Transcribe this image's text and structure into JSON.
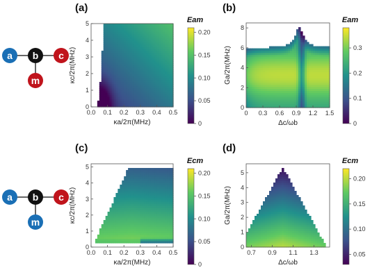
{
  "colors": {
    "node_a": "#1a6fb5",
    "node_b": "#111111",
    "node_c": "#c0141c",
    "node_m_top": "#c0141c",
    "node_m_bottom": "#1a6fb5",
    "colormap": [
      "#440154",
      "#3b528b",
      "#21918c",
      "#5ec962",
      "#fde725"
    ]
  },
  "diagrams": [
    {
      "nodes": [
        "a",
        "b",
        "c",
        "m"
      ],
      "icons": [
        "node-a",
        "node-b",
        "node-c",
        "node-m"
      ]
    },
    {
      "nodes": [
        "a",
        "b",
        "c",
        "m"
      ],
      "icons": [
        "node-a",
        "node-b",
        "node-c",
        "node-m"
      ]
    }
  ],
  "chart_data": [
    {
      "panel": "(a)",
      "type": "heatmap",
      "xlabel": "κa/2π(MHz)",
      "ylabel": "κc/2π(MHz)",
      "xlim": [
        0,
        0.5
      ],
      "ylim": [
        0,
        5
      ],
      "xticks": [
        "0.0",
        "0.1",
        "0.2",
        "0.3",
        "0.4",
        "0.5"
      ],
      "yticks": [
        "0",
        "1",
        "2",
        "3",
        "4",
        "5"
      ],
      "colorbar_title": "Eam",
      "colorbar_ticks": [
        "0",
        "0.05",
        "0.10",
        "0.15",
        "0.20"
      ],
      "colorbar_range": [
        0,
        0.21
      ]
    },
    {
      "panel": "(b)",
      "type": "heatmap",
      "xlabel": "Δc/ωb",
      "ylabel": "Ga/2π(MHz)",
      "xlim": [
        0,
        1.5
      ],
      "ylim": [
        0,
        8.5
      ],
      "xticks": [
        "0",
        "0.3",
        "0.6",
        "0.9",
        "1.2",
        "1.5"
      ],
      "yticks": [
        "0",
        "2",
        "4",
        "6",
        "8"
      ],
      "colorbar_title": "Eam",
      "colorbar_ticks": [
        "0",
        "0.1",
        "0.2",
        "0.3"
      ],
      "colorbar_range": [
        0,
        0.38
      ]
    },
    {
      "panel": "(c)",
      "type": "heatmap",
      "xlabel": "κa/2π(MHz)",
      "ylabel": "κc/2π(MHz)",
      "xlim": [
        0,
        0.5
      ],
      "ylim": [
        0,
        5.2
      ],
      "xticks": [
        "0.0",
        "0.1",
        "0.2",
        "0.3",
        "0.4",
        "0.5"
      ],
      "yticks": [
        "0",
        "1",
        "2",
        "3",
        "4",
        "5"
      ],
      "colorbar_title": "Ecm",
      "colorbar_ticks": [
        "0",
        "0.05",
        "0.10",
        "0.15",
        "0.20"
      ],
      "colorbar_range": [
        0,
        0.21
      ]
    },
    {
      "panel": "(d)",
      "type": "heatmap",
      "xlabel": "Δc/ωb",
      "ylabel": "Ga/2π(MHz)",
      "xlim": [
        0.65,
        1.45
      ],
      "ylim": [
        0,
        5.6
      ],
      "xticks": [
        "0.7",
        "0.9",
        "1.1",
        "1.3"
      ],
      "xtick_values": [
        0.7,
        0.9,
        1.1,
        1.3
      ],
      "yticks": [
        "0",
        "1",
        "2",
        "3",
        "4",
        "5"
      ],
      "colorbar_title": "Ecm",
      "colorbar_ticks": [
        "0.05",
        "0.10",
        "0.15",
        "0.20"
      ],
      "colorbar_range": [
        0.03,
        0.22
      ]
    }
  ]
}
